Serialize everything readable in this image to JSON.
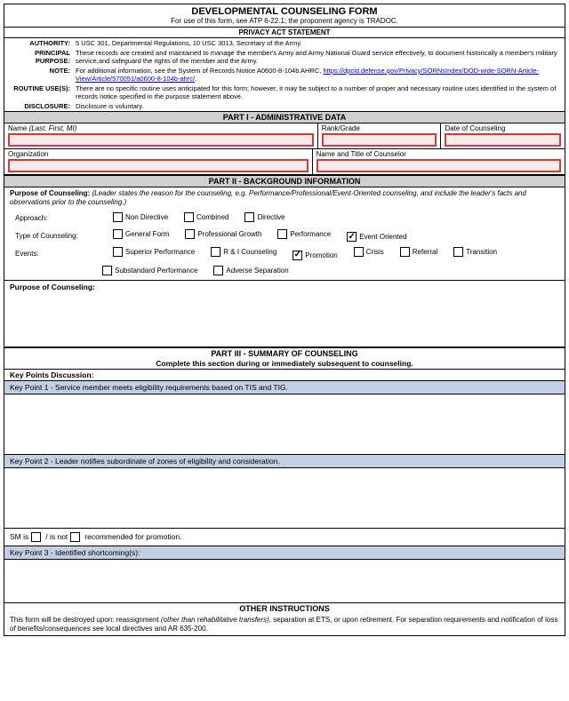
{
  "title": "DEVELOPMENTAL COUNSELING FORM",
  "subtitle": "For use of this form, see ATP 6-22.1; the proponent agency is TRADOC.",
  "privacy": {
    "header": "PRIVACY ACT STATEMENT",
    "rows": [
      {
        "label": "AUTHORITY:",
        "text": "5 USC 301, Departmental Regulations, 10 USC 3013, Secretary of the Army."
      },
      {
        "label": "PRINCIPAL PURPOSE:",
        "text": "These records are created and maintained to manage the member's Army and Army National Guard service effectively, to document historically a member's military service,and safeguard the rights of the member and the Army."
      },
      {
        "label": "NOTE:",
        "text_pre": "For additional information, see the System of Records Notice A0600-8-104b AHRC, ",
        "link": "https://dpcld.defense.gov/Privacy/SORNsIndex/DOD-wide-SORN-Article-View/Article/570051/a0600-8-104b-ahrc/",
        "text_post": "."
      },
      {
        "label": "ROUTINE USE(S):",
        "text": "There are no specific routine uses anticipated for this form; however, it may be subject to a number of proper and necessary routine uses identified in the system of records notice specified in the purpose statement above."
      },
      {
        "label": "DISCLOSURE:",
        "text": "Disclosure is voluntary."
      }
    ]
  },
  "part1": {
    "header": "PART I - ADMINISTRATIVE DATA",
    "name_label": "Name ",
    "name_hint": "(Last, First, MI)",
    "rank_label": "Rank/Grade",
    "date_label": "Date of Counseling",
    "org_label": "Organization",
    "counselor_label": "Name and Title of Counselor"
  },
  "part2": {
    "header": "PART II - BACKGROUND INFORMATION",
    "purpose_label": "Purpose of Counseling:",
    "purpose_hint": "(Leader states the reason for the counseling, e.g. Performance/Professional/Event-Oriented counseling, and include the leader's facts and observations prior to the counseling.)",
    "approach_label": "Approach:",
    "approaches": [
      {
        "label": "Non Directive",
        "checked": false
      },
      {
        "label": "Combined",
        "checked": false
      },
      {
        "label": "Directive",
        "checked": false
      }
    ],
    "type_label": "Type of Counseling:",
    "types": [
      {
        "label": "General Form",
        "checked": false
      },
      {
        "label": "Professional Growth",
        "checked": false
      },
      {
        "label": "Performance",
        "checked": false
      },
      {
        "label": "Event Oriented",
        "checked": true
      }
    ],
    "events_label": "Events:",
    "events1": [
      {
        "label": "Superior Performance",
        "checked": false
      },
      {
        "label": "R & I Counseling",
        "checked": false
      },
      {
        "label": "Promotion",
        "checked": true
      },
      {
        "label": "Crisis",
        "checked": false
      },
      {
        "label": "Referral",
        "checked": false
      },
      {
        "label": "Transition",
        "checked": false
      }
    ],
    "events2": [
      {
        "label": "Substandard Performance",
        "checked": false
      },
      {
        "label": "Adverse Separation",
        "checked": false
      }
    ],
    "purpose_box": "Purpose of Counseling:"
  },
  "part3": {
    "header": "PART III - SUMMARY OF COUNSELING",
    "sub": "Complete this section during or immediately subsequent to counseling.",
    "key_header": "Key Points Discussion:",
    "kp1_label": "Key Point 1 -  ",
    "kp1_text": "Service member meets eligibility requirements based on TIS and TIG.",
    "kp2_label": "Key Point 2 -  ",
    "kp2_text": "Leader notifies subordinate of zones of eligibility and consideration.",
    "sm_pre": "SM is",
    "sm_mid": "/ is not",
    "sm_post": "recommended for promotion.",
    "kp3_label": "Key Point 3 -  ",
    "kp3_text": "Identified shortcoming(s):"
  },
  "other": {
    "header": "OTHER INSTRUCTIONS",
    "pre": "This form will be destroyed upon: reassignment ",
    "italic": "(other than rehabilitative transfers)",
    "post": ", separation at ETS, or upon retirement. For separation requirements and notification of loss of benefits/consequences see local directives and AR 635-200."
  }
}
